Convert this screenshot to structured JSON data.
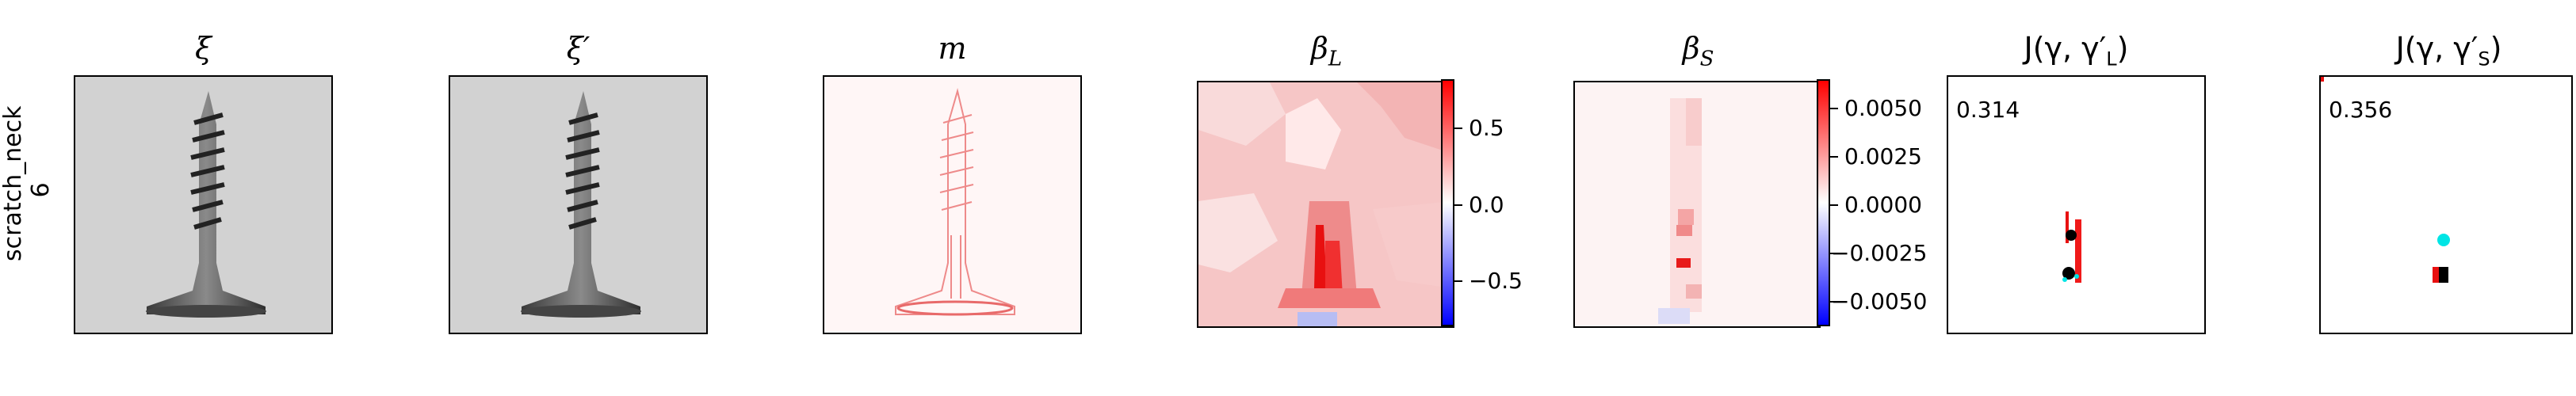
{
  "row_label": {
    "line1": "scratch_neck",
    "line2": "6"
  },
  "panels": [
    {
      "title": "ξ"
    },
    {
      "title": "ξ′"
    },
    {
      "title": "m"
    },
    {
      "title": "β",
      "sub": "L"
    },
    {
      "title": "β",
      "sub": "S"
    },
    {
      "title": "J(γ, γ′",
      "sub": "L",
      "close": ")",
      "score": "0.314"
    },
    {
      "title": "J(γ, γ′",
      "sub": "S",
      "close": ")",
      "score": "0.356"
    }
  ],
  "colorbar_L": {
    "ticks": [
      "0.5",
      "0.0",
      "−0.5"
    ]
  },
  "colorbar_S": {
    "ticks": [
      "0.0050",
      "0.0025",
      "0.0000",
      "−0.0025",
      "−0.0050"
    ]
  },
  "colors": {
    "pos": "#ff0000",
    "neg": "#0000ff",
    "neutral": "#ffffff",
    "marker_a": "#00ffff",
    "marker_b": "#000000"
  }
}
